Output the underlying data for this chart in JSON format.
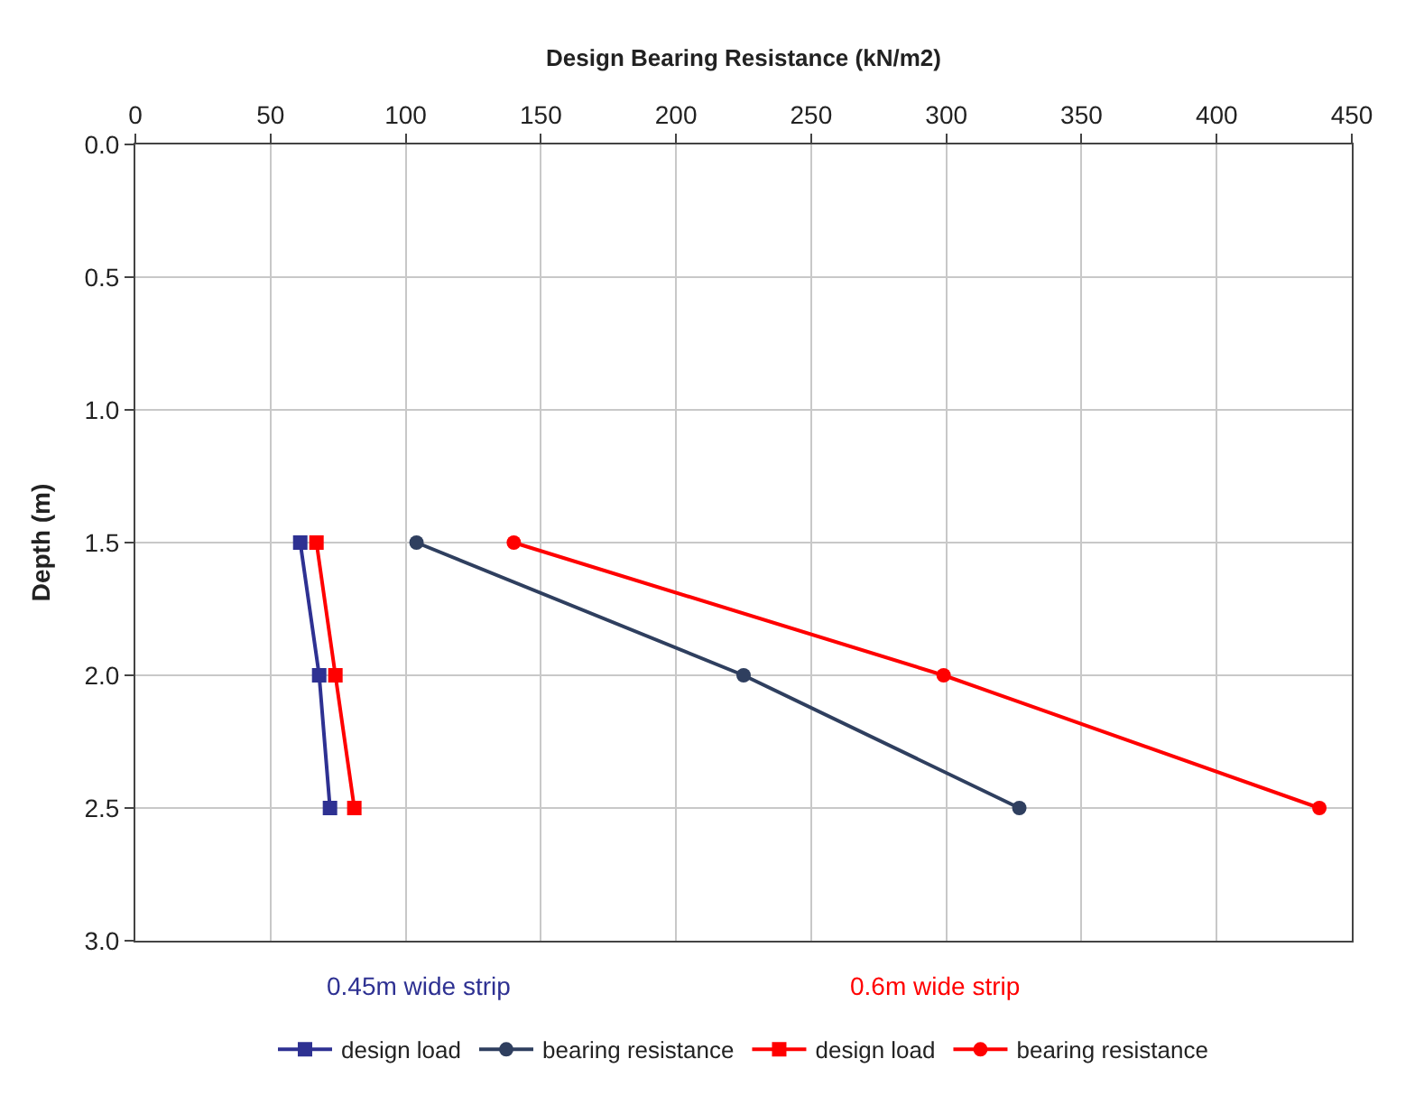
{
  "chart_data": {
    "type": "line",
    "xlabel": "Design Bearing Resistance (kN/m2)",
    "ylabel": "Depth (m)",
    "xlim": [
      0,
      450
    ],
    "xticks": [
      0,
      50,
      100,
      150,
      200,
      250,
      300,
      350,
      400,
      450
    ],
    "ylim": [
      3.0,
      0.0
    ],
    "yticks": [
      {
        "value": 0,
        "label": "0.0"
      },
      {
        "value": 0.5,
        "label": "0.5"
      },
      {
        "value": 1,
        "label": "1.0"
      },
      {
        "value": 1.5,
        "label": "1.5"
      },
      {
        "value": 2,
        "label": "2.0"
      },
      {
        "value": 2.5,
        "label": "2.5"
      },
      {
        "value": 3,
        "label": "3.0"
      }
    ],
    "grid": true,
    "legend": "bottom",
    "annotations": [
      "0.45m wide strip",
      "0.6m wide strip"
    ],
    "series": [
      {
        "name": "design load",
        "color": "#2e3192",
        "marker": "square",
        "x": [
          61,
          68,
          72
        ],
        "values": [
          1.5,
          2.0,
          2.5
        ]
      },
      {
        "name": "bearing resistance",
        "color": "#2f3f5f",
        "marker": "circle",
        "x": [
          104,
          225,
          327
        ],
        "values": [
          1.5,
          2.0,
          2.5
        ]
      },
      {
        "name": "design load",
        "color": "#ff0000",
        "marker": "square",
        "x": [
          67,
          74,
          81
        ],
        "values": [
          1.5,
          2.0,
          2.5
        ]
      },
      {
        "name": "bearing resistance",
        "color": "#ff0000",
        "marker": "circle",
        "x": [
          140,
          299,
          438
        ],
        "values": [
          1.5,
          2.0,
          2.5
        ]
      }
    ]
  }
}
